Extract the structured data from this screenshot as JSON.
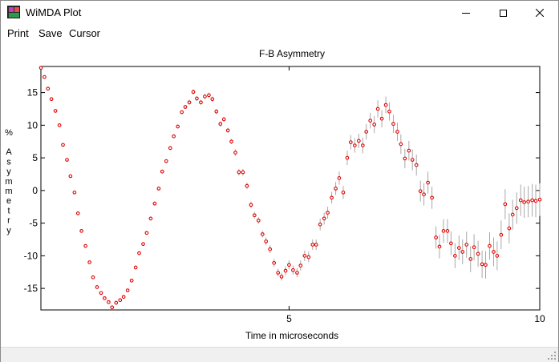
{
  "window": {
    "title": "WiMDA Plot",
    "icon": "wimda-app-icon",
    "controls": {
      "minimize": "minimize-icon",
      "maximize": "maximize-icon",
      "close": "close-icon"
    }
  },
  "menu": {
    "items": [
      "Print",
      "Save",
      "Cursor"
    ]
  },
  "colors": {
    "marker": "#e00000",
    "errorbar": "#a8a8a8",
    "axis": "#000000",
    "background": "#ffffff"
  },
  "chart_data": {
    "type": "scatter",
    "title": "F-B Asymmetry",
    "xlabel": "Time in microseconds",
    "ylabel": "% Asymmetry",
    "xlim": [
      0.05,
      10.0
    ],
    "ylim": [
      -18.3,
      19.0
    ],
    "x_ticks": [
      5,
      10
    ],
    "y_ticks": [
      15,
      10,
      5,
      0,
      -5,
      -10,
      -15
    ],
    "grid": false,
    "legend": "none",
    "series": [
      {
        "x": [
          0.05,
          0.12,
          0.19,
          0.26,
          0.34,
          0.42,
          0.49,
          0.57,
          0.64,
          0.72,
          0.79,
          0.86,
          0.94,
          1.02,
          1.09,
          1.17,
          1.25,
          1.32,
          1.4,
          1.47,
          1.55,
          1.63,
          1.7,
          1.78,
          1.86,
          1.94,
          2.01,
          2.09,
          2.16,
          2.24,
          2.32,
          2.4,
          2.47,
          2.55,
          2.63,
          2.7,
          2.78,
          2.86,
          2.93,
          3.01,
          3.09,
          3.16,
          3.24,
          3.32,
          3.4,
          3.47,
          3.55,
          3.63,
          3.7,
          3.78,
          3.85,
          3.93,
          4.0,
          4.08,
          4.16,
          4.24,
          4.31,
          4.39,
          4.47,
          4.54,
          4.62,
          4.7,
          4.78,
          4.85,
          4.93,
          5.0,
          5.08,
          5.16,
          5.23,
          5.31,
          5.39,
          5.47,
          5.54,
          5.62,
          5.7,
          5.77,
          5.85,
          5.93,
          6.0,
          6.08,
          6.16,
          6.23,
          6.31,
          6.39,
          6.47,
          6.54,
          6.62,
          6.7,
          6.77,
          6.85,
          6.93,
          7.0,
          7.08,
          7.16,
          7.23,
          7.31,
          7.39,
          7.46,
          7.54,
          7.62,
          7.69,
          7.77,
          7.85,
          7.93,
          8.0,
          8.08,
          8.16,
          8.23,
          8.31,
          8.39,
          8.46,
          8.54,
          8.62,
          8.69,
          8.77,
          8.85,
          8.92,
          9.0,
          9.08,
          9.15,
          9.23,
          9.31,
          9.39,
          9.46,
          9.54,
          9.62,
          9.69,
          9.77,
          9.85,
          9.92,
          10.0
        ],
        "y": [
          18.8,
          17.4,
          15.6,
          14.0,
          12.2,
          10.0,
          7.0,
          4.7,
          2.2,
          -0.3,
          -3.5,
          -6.2,
          -8.5,
          -11.0,
          -13.3,
          -14.8,
          -15.7,
          -16.5,
          -17.1,
          -17.9,
          -17.2,
          -16.8,
          -16.3,
          -15.3,
          -13.8,
          -11.8,
          -9.6,
          -8.2,
          -6.5,
          -4.3,
          -2.0,
          0.3,
          2.9,
          4.5,
          6.5,
          8.3,
          9.8,
          12.0,
          12.8,
          13.5,
          15.1,
          14.1,
          13.5,
          14.4,
          14.6,
          14.0,
          12.1,
          10.2,
          10.9,
          9.2,
          7.5,
          5.8,
          2.8,
          2.8,
          0.7,
          -2.2,
          -3.8,
          -4.6,
          -6.7,
          -7.8,
          -9.0,
          -11.1,
          -12.6,
          -13.2,
          -12.3,
          -11.4,
          -12.2,
          -12.6,
          -11.5,
          -10.0,
          -10.2,
          -8.3,
          -8.3,
          -5.2,
          -4.3,
          -3.4,
          -1.1,
          0.3,
          1.9,
          -0.3,
          5.0,
          7.4,
          6.9,
          7.6,
          6.9,
          9.0,
          10.7,
          10.1,
          12.5,
          11.0,
          13.1,
          12.1,
          10.2,
          9.0,
          7.1,
          4.9,
          6.1,
          4.7,
          3.9,
          -0.1,
          -0.6,
          1.2,
          -1.1,
          -7.2,
          -8.6,
          -6.2,
          -6.2,
          -8.1,
          -10.0,
          -8.8,
          -9.4,
          -8.3,
          -10.5,
          -8.7,
          -9.7,
          -11.3,
          -11.4,
          -8.5,
          -9.4,
          -10.0,
          -6.8,
          -2.1,
          -5.8,
          -3.7,
          -2.7,
          -1.5,
          -1.8,
          -1.7,
          -1.5,
          -1.6,
          -1.4
        ],
        "err": [
          0.1,
          0.2,
          0.2,
          0.2,
          0.2,
          0.2,
          0.2,
          0.2,
          0.2,
          0.2,
          0.2,
          0.2,
          0.2,
          0.2,
          0.2,
          0.2,
          0.2,
          0.2,
          0.2,
          0.2,
          0.2,
          0.2,
          0.2,
          0.2,
          0.2,
          0.3,
          0.3,
          0.3,
          0.3,
          0.3,
          0.3,
          0.3,
          0.3,
          0.3,
          0.3,
          0.3,
          0.3,
          0.3,
          0.3,
          0.4,
          0.4,
          0.4,
          0.4,
          0.4,
          0.4,
          0.4,
          0.4,
          0.4,
          0.4,
          0.4,
          0.4,
          0.5,
          0.5,
          0.5,
          0.5,
          0.5,
          0.5,
          0.5,
          0.5,
          0.6,
          0.6,
          0.6,
          0.6,
          0.6,
          0.7,
          0.7,
          0.7,
          0.7,
          0.8,
          0.8,
          0.8,
          0.8,
          0.8,
          0.9,
          0.9,
          0.9,
          0.9,
          1.0,
          1.0,
          1.0,
          1.1,
          1.1,
          1.1,
          1.1,
          1.2,
          1.2,
          1.2,
          1.3,
          1.3,
          1.3,
          1.3,
          1.4,
          1.4,
          1.4,
          1.5,
          1.5,
          1.5,
          1.6,
          1.6,
          1.6,
          1.7,
          1.7,
          1.7,
          1.7,
          1.8,
          1.8,
          1.8,
          1.8,
          1.9,
          1.9,
          1.9,
          2.0,
          2.0,
          2.0,
          2.0,
          2.1,
          2.1,
          2.1,
          2.2,
          2.2,
          2.2,
          2.3,
          2.3,
          2.3,
          2.4,
          2.4,
          2.4,
          2.4,
          2.5,
          2.5,
          2.5
        ]
      }
    ]
  }
}
